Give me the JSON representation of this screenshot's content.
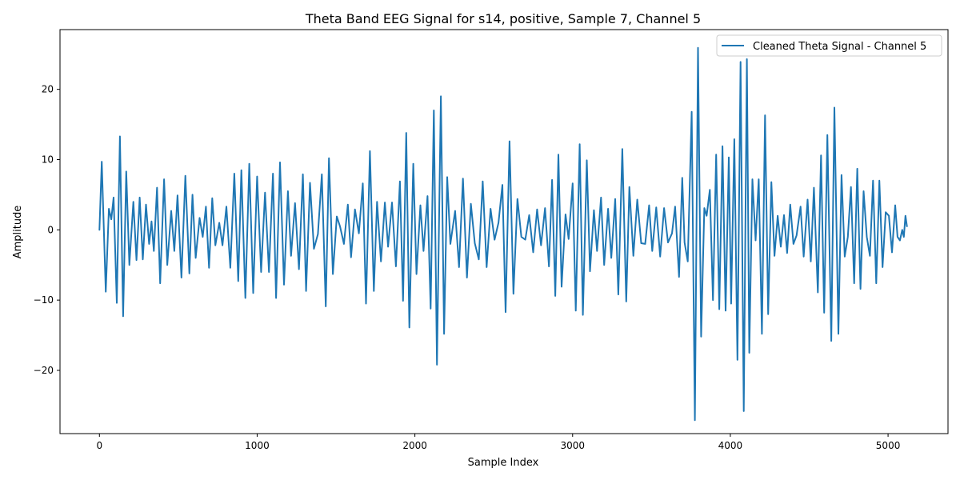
{
  "chart_data": {
    "type": "line",
    "title": "Theta Band EEG Signal for s14, positive, Sample 7, Channel 5",
    "xlabel": "Sample Index",
    "ylabel": "Amplitude",
    "xlim": [
      -250,
      5380
    ],
    "ylim": [
      -29,
      28.5
    ],
    "xticks": [
      0,
      1000,
      2000,
      3000,
      4000,
      5000
    ],
    "yticks": [
      -20,
      -10,
      0,
      10,
      20
    ],
    "xtick_labels": [
      "0",
      "1000",
      "2000",
      "3000",
      "4000",
      "5000"
    ],
    "ytick_labels": [
      "−20",
      "−10",
      "0",
      "10",
      "20"
    ],
    "grid": false,
    "legend_position": "upper-right",
    "series": [
      {
        "name": "Cleaned Theta Signal - Channel 5",
        "color": "#1f77b4",
        "x": [
          0,
          15,
          40,
          60,
          75,
          90,
          110,
          130,
          150,
          170,
          190,
          215,
          235,
          255,
          275,
          295,
          315,
          330,
          345,
          365,
          385,
          410,
          430,
          455,
          475,
          495,
          520,
          545,
          570,
          590,
          610,
          635,
          655,
          675,
          695,
          715,
          735,
          760,
          780,
          805,
          830,
          855,
          880,
          900,
          925,
          950,
          975,
          1000,
          1025,
          1050,
          1075,
          1100,
          1120,
          1145,
          1170,
          1195,
          1215,
          1240,
          1265,
          1290,
          1310,
          1335,
          1360,
          1385,
          1410,
          1435,
          1455,
          1480,
          1505,
          1525,
          1550,
          1575,
          1595,
          1620,
          1645,
          1670,
          1690,
          1715,
          1740,
          1760,
          1785,
          1810,
          1830,
          1855,
          1880,
          1905,
          1925,
          1945,
          1965,
          1990,
          2010,
          2035,
          2055,
          2080,
          2100,
          2120,
          2140,
          2165,
          2185,
          2205,
          2225,
          2255,
          2280,
          2305,
          2330,
          2355,
          2380,
          2405,
          2430,
          2455,
          2480,
          2505,
          2530,
          2555,
          2575,
          2600,
          2625,
          2650,
          2675,
          2700,
          2725,
          2750,
          2775,
          2800,
          2825,
          2850,
          2870,
          2890,
          2910,
          2930,
          2955,
          2975,
          3000,
          3020,
          3045,
          3065,
          3090,
          3110,
          3135,
          3155,
          3180,
          3200,
          3225,
          3245,
          3270,
          3290,
          3315,
          3340,
          3360,
          3385,
          3410,
          3435,
          3460,
          3485,
          3505,
          3530,
          3555,
          3580,
          3605,
          3630,
          3650,
          3675,
          3695,
          3710,
          3730,
          3755,
          3775,
          3795,
          3815,
          3835,
          3850,
          3870,
          3890,
          3910,
          3930,
          3950,
          3970,
          3990,
          4005,
          4025,
          4045,
          4065,
          4085,
          4105,
          4120,
          4140,
          4160,
          4180,
          4200,
          4220,
          4240,
          4260,
          4280,
          4300,
          4320,
          4340,
          4360,
          4380,
          4400,
          4420,
          4445,
          4465,
          4490,
          4510,
          4530,
          4555,
          4575,
          4595,
          4615,
          4640,
          4660,
          4685,
          4705,
          4725,
          4745,
          4765,
          4785,
          4805,
          4825,
          4845,
          4865,
          4885,
          4905,
          4925,
          4945,
          4965,
          4985,
          5005,
          5025,
          5045,
          5060,
          5075,
          5090,
          5100,
          5110,
          5120
        ],
        "values": [
          0,
          9.7,
          -8.8,
          3.0,
          1.5,
          4.6,
          -10.4,
          13.3,
          -12.3,
          8.3,
          -5.0,
          4.0,
          -4.3,
          4.6,
          -4.2,
          3.6,
          -2.0,
          1.2,
          -3.0,
          6.0,
          -7.6,
          7.2,
          -5.0,
          2.7,
          -3.0,
          4.9,
          -6.8,
          7.7,
          -6.2,
          5.0,
          -4.0,
          1.7,
          -1.0,
          3.3,
          -5.4,
          4.5,
          -2.2,
          1.0,
          -2.2,
          3.3,
          -5.4,
          8.0,
          -7.3,
          8.5,
          -9.7,
          9.4,
          -9.0,
          7.6,
          -6.0,
          5.3,
          -6.0,
          8.0,
          -9.7,
          9.6,
          -7.8,
          5.5,
          -3.7,
          3.8,
          -5.6,
          7.9,
          -8.7,
          6.7,
          -2.7,
          -0.6,
          7.9,
          -10.9,
          10.2,
          -6.3,
          1.9,
          0.5,
          -2.0,
          3.6,
          -3.9,
          2.9,
          -0.5,
          6.6,
          -10.5,
          11.2,
          -8.7,
          4.0,
          -4.5,
          3.9,
          -2.4,
          3.9,
          -5.2,
          6.9,
          -10.1,
          13.8,
          -13.9,
          9.4,
          -6.3,
          3.5,
          -3.0,
          4.8,
          -11.2,
          17.0,
          -19.2,
          19.0,
          -14.8,
          7.5,
          -2.0,
          2.7,
          -5.3,
          7.3,
          -6.8,
          3.7,
          -1.9,
          -4.2,
          6.9,
          -5.3,
          3.0,
          -1.4,
          1.0,
          6.4,
          -11.7,
          12.6,
          -9.1,
          4.4,
          -1.0,
          -1.4,
          2.1,
          -3.2,
          2.9,
          -2.2,
          3.1,
          -5.2,
          7.1,
          -9.4,
          10.7,
          -8.1,
          2.2,
          -1.3,
          6.6,
          -11.5,
          12.2,
          -12.1,
          9.9,
          -5.9,
          2.8,
          -3.0,
          4.6,
          -5.0,
          3.0,
          -4.0,
          4.4,
          -9.2,
          11.5,
          -10.2,
          6.1,
          -3.7,
          4.3,
          -1.9,
          -2.0,
          3.5,
          -3.0,
          3.2,
          -3.8,
          3.1,
          -1.8,
          -0.5,
          3.3,
          -6.7,
          7.4,
          -1.8,
          -4.5,
          16.8,
          -27.1,
          25.9,
          -15.2,
          3.1,
          2.0,
          5.7,
          -10.0,
          10.7,
          -11.3,
          11.9,
          -11.5,
          10.3,
          -10.5,
          12.9,
          -18.5,
          23.9,
          -25.8,
          24.3,
          -17.5,
          7.2,
          -1.5,
          7.2,
          -14.8,
          16.3,
          -12.0,
          6.8,
          -3.7,
          2.0,
          -2.4,
          2.1,
          -3.3,
          3.6,
          -2.0,
          -0.8,
          3.3,
          -3.8,
          4.3,
          -4.5,
          6.0,
          -8.9,
          10.6,
          -11.8,
          13.5,
          -15.8,
          17.4,
          -14.8,
          7.8,
          -3.8,
          -1.0,
          6.1,
          -7.6,
          8.7,
          -8.4,
          5.5,
          -1.0,
          -3.7,
          7.0,
          -7.6,
          7.0,
          -5.3,
          2.5,
          2.0,
          -3.2,
          3.5,
          -1.0,
          -1.5,
          0,
          -1.0,
          2.0,
          0.5
        ]
      }
    ]
  }
}
